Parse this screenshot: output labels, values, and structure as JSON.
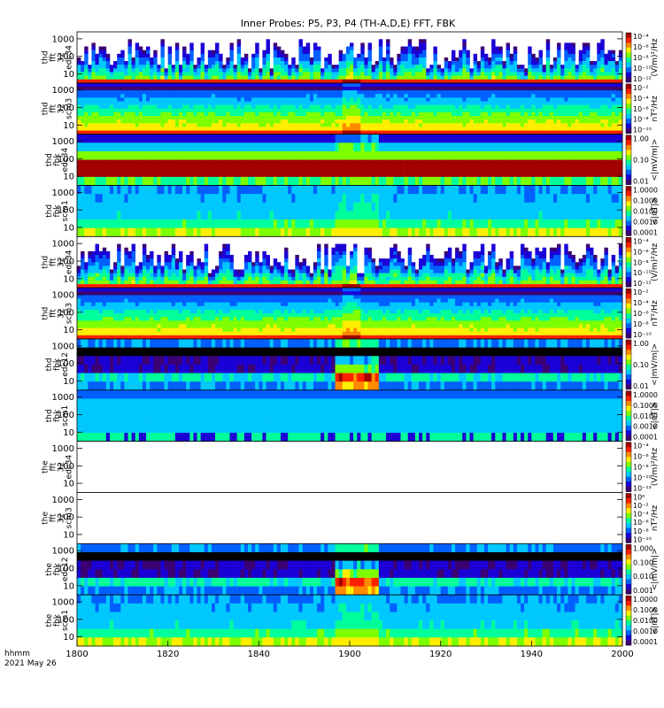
{
  "chart_data": {
    "type": "heatmap",
    "title": "Inner Probes: P5, P3, P4 (TH-A,D,E) FFT, FBK",
    "time_axis": {
      "range": [
        "18:00",
        "20:00"
      ],
      "tick_labels": [
        "1800",
        "1820",
        "1840",
        "1900",
        "1920",
        "1940",
        "2000"
      ],
      "label_line1": "hhmm",
      "label_line2": "2021 May 26"
    },
    "panels": [
      {
        "probe": "thd",
        "mode": "fft",
        "res": "32",
        "channel": "edc34",
        "y_ticks": [
          "10",
          "100",
          "1000"
        ],
        "colorbar_unit": "(V/m)²/Hz",
        "colorbar_ticks": [
          "10⁻⁴",
          "10⁻⁶",
          "10⁻⁸",
          "10⁻¹⁰",
          "10⁻¹²"
        ],
        "scheme": "fft_spiky",
        "density": 0.9,
        "level": 0.45
      },
      {
        "probe": "thd",
        "mode": "fft",
        "res": "32",
        "channel": "scm3",
        "y_ticks": [
          "10",
          "100",
          "1000"
        ],
        "colorbar_unit": "nT²/Hz",
        "colorbar_ticks": [
          "10⁻²",
          "10⁻⁴",
          "10⁻⁶",
          "10⁻⁸",
          "10⁻¹⁰"
        ],
        "scheme": "fft_band",
        "density": 1.0,
        "level": 0.5
      },
      {
        "probe": "thd",
        "mode": "fbk",
        "res": "",
        "channel": "edc34",
        "y_ticks": [
          "10",
          "100",
          "1000"
        ],
        "colorbar_unit": "<|mV/m|>",
        "colorbar_ticks": [
          "1.00",
          "0.10",
          "0.01"
        ],
        "scheme": "fbk_red",
        "density": 1.0,
        "level": 0.9
      },
      {
        "probe": "thd",
        "mode": "fbk",
        "res": "",
        "channel": "scm1",
        "y_ticks": [
          "10",
          "100",
          "1000"
        ],
        "colorbar_unit": "<|nT|>",
        "colorbar_ticks": [
          "1.0000",
          "0.1000",
          "0.0100",
          "0.0010",
          "0.0001"
        ],
        "scheme": "fbk_scm",
        "density": 1.0,
        "level": 0.4
      },
      {
        "probe": "thd",
        "mode": "fft",
        "res": "32",
        "channel": "edc34",
        "y_ticks": [
          "10",
          "100",
          "1000"
        ],
        "colorbar_unit": "(V/m)²/Hz",
        "colorbar_ticks": [
          "10⁻⁴",
          "10⁻⁶",
          "10⁻⁸",
          "10⁻¹⁰",
          "10⁻¹²"
        ],
        "scheme": "fft_spiky",
        "density": 0.6,
        "level": 0.35
      },
      {
        "probe": "thd",
        "mode": "fft",
        "res": "32",
        "channel": "scm3",
        "y_ticks": [
          "10",
          "100",
          "1000"
        ],
        "colorbar_unit": "nT²/Hz",
        "colorbar_ticks": [
          "10⁻²",
          "10⁻⁴",
          "10⁻⁶",
          "10⁻⁸",
          "10⁻¹⁰"
        ],
        "scheme": "fft_band",
        "density": 1.0,
        "level": 0.5
      },
      {
        "probe": "thd",
        "mode": "fbk",
        "res": "",
        "channel": "edc12",
        "y_ticks": [
          "10",
          "100",
          "1000"
        ],
        "colorbar_unit": "<|mV/m|>",
        "colorbar_ticks": [
          "1.00",
          "0.10",
          "0.01"
        ],
        "scheme": "fbk_dark",
        "density": 1.0,
        "level": 0.3
      },
      {
        "probe": "thd",
        "mode": "fbk",
        "res": "",
        "channel": "scm1",
        "y_ticks": [
          "10",
          "100",
          "1000"
        ],
        "colorbar_unit": "<|nT|>",
        "colorbar_ticks": [
          "1.0000",
          "0.1000",
          "0.0100",
          "0.0010",
          "0.0001"
        ],
        "scheme": "fbk_scm_blue",
        "density": 1.0,
        "level": 0.35
      },
      {
        "probe": "the",
        "mode": "fft",
        "res": "32",
        "channel": "edc34",
        "y_ticks": [
          "10",
          "100",
          "1000"
        ],
        "colorbar_unit": "(V/m)²/Hz",
        "colorbar_ticks": [
          "10⁻⁴",
          "10⁻⁶",
          "10⁻⁸",
          "10⁻¹⁰",
          "10⁻¹²"
        ],
        "scheme": "empty",
        "density": 0,
        "level": 0
      },
      {
        "probe": "the",
        "mode": "fft",
        "res": "32",
        "channel": "scm3",
        "y_ticks": [
          "10",
          "100",
          "1000"
        ],
        "colorbar_unit": "nT²/Hz",
        "colorbar_ticks": [
          "10⁰",
          "10⁻²",
          "10⁻⁴",
          "10⁻⁶",
          "10⁻⁸",
          "10⁻¹⁰"
        ],
        "scheme": "empty",
        "density": 0,
        "level": 0
      },
      {
        "probe": "the",
        "mode": "fbk",
        "res": "",
        "channel": "edc12",
        "y_ticks": [
          "10",
          "100",
          "1000"
        ],
        "colorbar_unit": "<|mV/m|>",
        "colorbar_ticks": [
          "1.000",
          "0.100",
          "0.010",
          "0.001"
        ],
        "scheme": "fbk_dark",
        "density": 1.0,
        "level": 0.25
      },
      {
        "probe": "the",
        "mode": "fbk",
        "res": "",
        "channel": "scm1",
        "y_ticks": [
          "10",
          "100",
          "1000"
        ],
        "colorbar_unit": "<|nT|>",
        "colorbar_ticks": [
          "1.0000",
          "0.1000",
          "0.0100",
          "0.0010",
          "0.0001"
        ],
        "scheme": "fbk_scm",
        "density": 1.0,
        "level": 0.4
      }
    ],
    "colors": {
      "colorbar": [
        "#3b0073",
        "#1b00d6",
        "#0060ff",
        "#00c8ff",
        "#00ff9a",
        "#7dff00",
        "#ffee00",
        "#ff8a00",
        "#ff2000",
        "#a30000"
      ]
    }
  }
}
